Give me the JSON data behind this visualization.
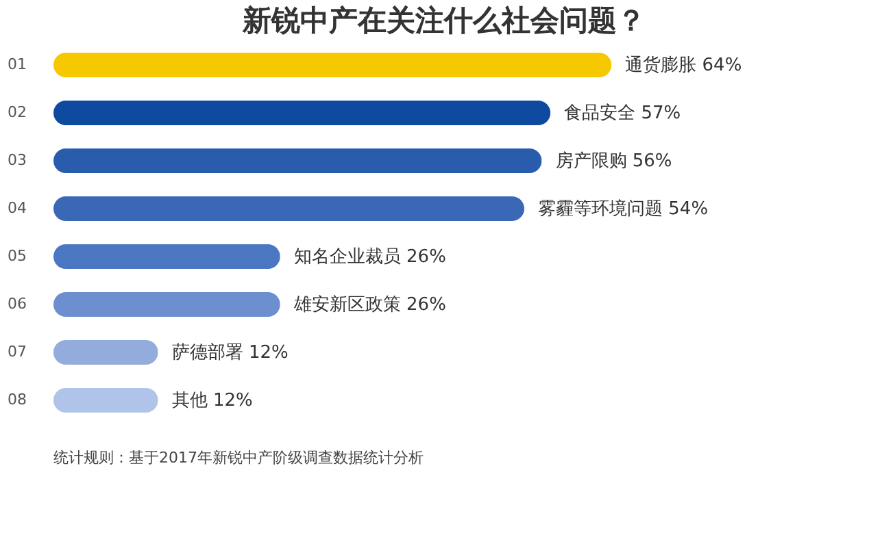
{
  "chart_data": {
    "type": "bar",
    "orientation": "horizontal",
    "title": "新锐中产在关注什么社会问题？",
    "categories": [
      "01",
      "02",
      "03",
      "04",
      "05",
      "06",
      "07",
      "08"
    ],
    "values": [
      64,
      57,
      56,
      54,
      26,
      26,
      12,
      12
    ],
    "colors": [
      "#f6c800",
      "#0d4aa0",
      "#2a5cae",
      "#3a67b6",
      "#4a76c2",
      "#6d8fd0",
      "#94acdc",
      "#b0c3e8"
    ],
    "value_labels": [
      "通货膨胀 64%",
      "食品安全 57%",
      "房产限购 56%",
      "雾霾等环境问题 54%",
      "知名企业裁员 26%",
      "雄安新区政策 26%",
      "萨德部署 12%",
      "其他 12%"
    ],
    "annotations": [
      "统计规则：基于2017年新锐中产阶级调查数据统计分析"
    ]
  }
}
